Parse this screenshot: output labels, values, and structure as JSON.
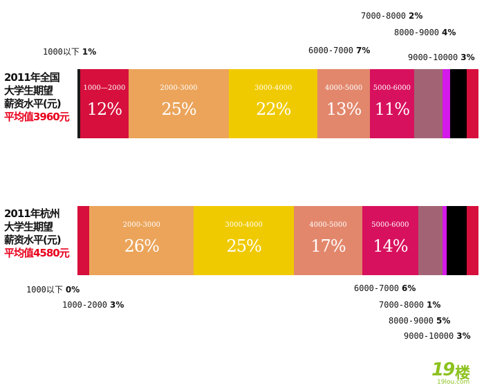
{
  "chart_data": [
    {
      "type": "bar",
      "orientation": "horizontal-stacked",
      "title_lines": [
        "2011年全国",
        "大学生期望",
        "薪资水平(元)"
      ],
      "average_label": "平均值3960元",
      "segments": [
        {
          "range": "1000以下",
          "pct_label": "1%",
          "value": 1,
          "color": "#1a1a1a",
          "range_inside": "",
          "pct_inside": ""
        },
        {
          "range": "1000—2000",
          "pct_label": "12%",
          "value": 12,
          "color": "#d60f3c",
          "range_inside": "1000—2000",
          "pct_inside": "12%"
        },
        {
          "range": "2000-3000",
          "pct_label": "25%",
          "value": 25,
          "color": "#eba45a",
          "range_inside": "2000-3000",
          "pct_inside": "25%"
        },
        {
          "range": "3000-4000",
          "pct_label": "22%",
          "value": 22,
          "color": "#f0ca00",
          "range_inside": "3000-4000",
          "pct_inside": "22%"
        },
        {
          "range": "4000-5000",
          "pct_label": "13%",
          "value": 13,
          "color": "#e2876c",
          "range_inside": "4000-5000",
          "pct_inside": "13%"
        },
        {
          "range": "5000-6000",
          "pct_label": "11%",
          "value": 11,
          "color": "#d8115e",
          "range_inside": "5000-6000",
          "pct_inside": "11%"
        },
        {
          "range": "6000-7000",
          "pct_label": "7%",
          "value": 7,
          "color": "#a26474",
          "range_inside": "",
          "pct_inside": ""
        },
        {
          "range": "7000-8000",
          "pct_label": "2%",
          "value": 2,
          "color": "#d31ae8",
          "range_inside": "",
          "pct_inside": ""
        },
        {
          "range": "8000-9000",
          "pct_label": "4%",
          "value": 4,
          "color": "#000000",
          "range_inside": "",
          "pct_inside": ""
        },
        {
          "range": "9000-10000",
          "pct_label": "3%",
          "value": 3,
          "color": "#d60f3c",
          "range_inside": "",
          "pct_inside": ""
        }
      ]
    },
    {
      "type": "bar",
      "orientation": "horizontal-stacked",
      "title_lines": [
        "2011年杭州",
        "大学生期望",
        "薪资水平(元)"
      ],
      "average_label": "平均值4580元",
      "segments": [
        {
          "range": "1000以下",
          "pct_label": "0%",
          "value": 0,
          "color": "#1a1a1a",
          "range_inside": "",
          "pct_inside": ""
        },
        {
          "range": "1000-2000",
          "pct_label": "3%",
          "value": 3,
          "color": "#d60f3c",
          "range_inside": "",
          "pct_inside": ""
        },
        {
          "range": "2000-3000",
          "pct_label": "26%",
          "value": 26,
          "color": "#eba45a",
          "range_inside": "2000-3000",
          "pct_inside": "26%"
        },
        {
          "range": "3000-4000",
          "pct_label": "25%",
          "value": 25,
          "color": "#f0ca00",
          "range_inside": "3000-4000",
          "pct_inside": "25%"
        },
        {
          "range": "4000-5000",
          "pct_label": "17%",
          "value": 17,
          "color": "#e2876c",
          "range_inside": "4000-5000",
          "pct_inside": "17%"
        },
        {
          "range": "5000-6000",
          "pct_label": "14%",
          "value": 14,
          "color": "#d8115e",
          "range_inside": "5000-6000",
          "pct_inside": "14%"
        },
        {
          "range": "6000-7000",
          "pct_label": "6%",
          "value": 6,
          "color": "#a26474",
          "range_inside": "",
          "pct_inside": ""
        },
        {
          "range": "7000-8000",
          "pct_label": "1%",
          "value": 1,
          "color": "#d31ae8",
          "range_inside": "",
          "pct_inside": ""
        },
        {
          "range": "8000-9000",
          "pct_label": "5%",
          "value": 5,
          "color": "#000000",
          "range_inside": "",
          "pct_inside": ""
        },
        {
          "range": "9000-10000",
          "pct_label": "3%",
          "value": 3,
          "color": "#d60f3c",
          "range_inside": "",
          "pct_inside": ""
        }
      ]
    }
  ],
  "watermark": {
    "number": "19",
    "word": "楼",
    "url": "19lou.com"
  }
}
